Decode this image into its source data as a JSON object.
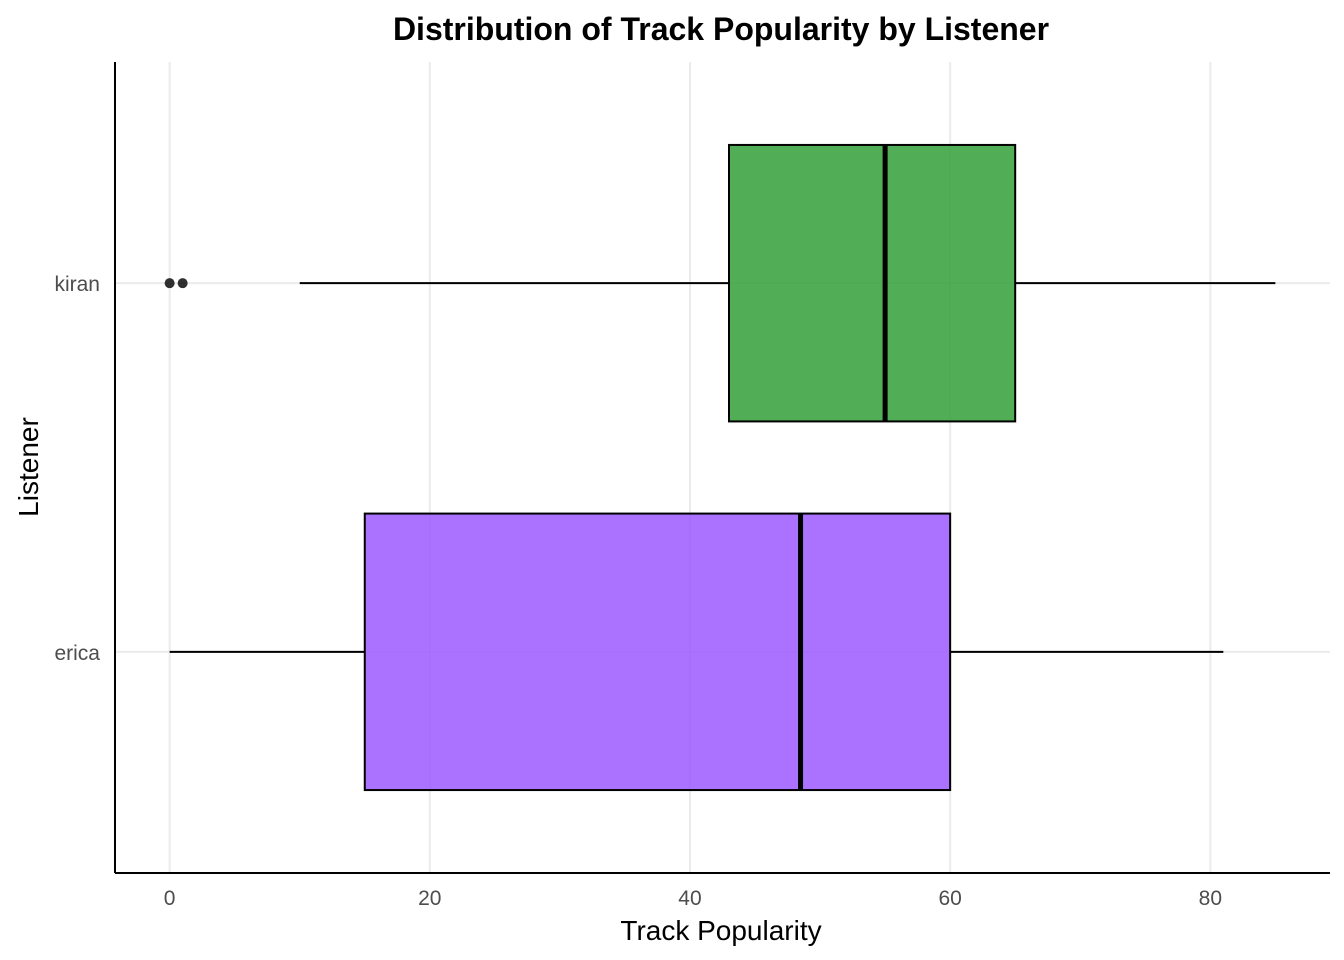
{
  "chart_data": {
    "type": "boxplot",
    "orientation": "horizontal",
    "title": "Distribution of Track Popularity by Listener",
    "xlabel": "Track Popularity",
    "ylabel": "Listener",
    "xlim": [
      -4.2,
      89.2
    ],
    "xticks": [
      0,
      20,
      40,
      60,
      80
    ],
    "xtick_labels": [
      "0",
      "20",
      "40",
      "60",
      "80"
    ],
    "categories": [
      "erica",
      "kiran"
    ],
    "series": [
      {
        "category": "erica",
        "color": "#9b59ff",
        "whisker_low": 0,
        "q1": 15,
        "median": 48.5,
        "q3": 60,
        "whisker_high": 81,
        "outliers": []
      },
      {
        "category": "kiran",
        "color": "#34a038",
        "whisker_low": 10,
        "q1": 43,
        "median": 55,
        "q3": 65,
        "whisker_high": 85,
        "outliers": [
          0,
          1
        ]
      }
    ],
    "grid": true,
    "legend": "none"
  }
}
